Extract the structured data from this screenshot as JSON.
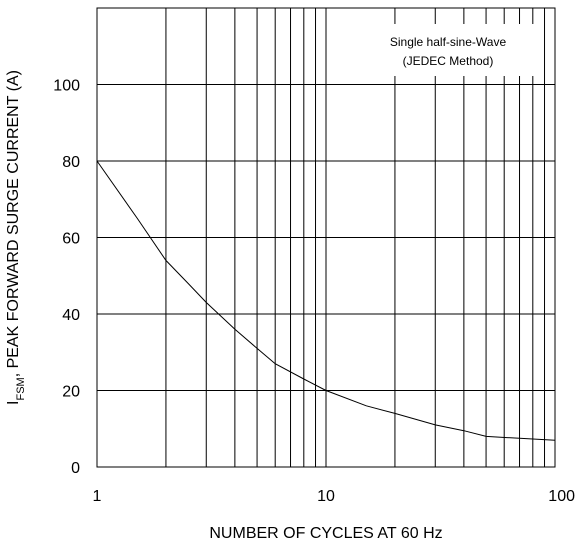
{
  "chart_data": {
    "type": "line",
    "xscale": "log",
    "xlim": [
      1,
      100
    ],
    "ylim": [
      0,
      120
    ],
    "grid": true,
    "xlabel": "NUMBER OF CYCLES AT 60 Hz",
    "ylabel_main": "I",
    "ylabel_sub": "FSM",
    "ylabel_rest": ", PEAK FORWARD SURGE CURRENT (A)",
    "x_ticks": [
      "1",
      "10",
      "100"
    ],
    "y_ticks": [
      "0",
      "20",
      "40",
      "60",
      "80",
      "100"
    ],
    "annotation": [
      "Single half-sine-Wave",
      "(JEDEC Method)"
    ],
    "series": [
      {
        "x": [
          1,
          1.5,
          2,
          2.5,
          3,
          4,
          5,
          6,
          8,
          10,
          15,
          20,
          30,
          40,
          50,
          70,
          100
        ],
        "y": [
          80,
          65,
          54,
          48,
          43,
          36,
          31,
          27,
          23,
          20,
          16,
          14,
          11,
          9.5,
          8,
          7.5,
          7
        ]
      }
    ]
  }
}
